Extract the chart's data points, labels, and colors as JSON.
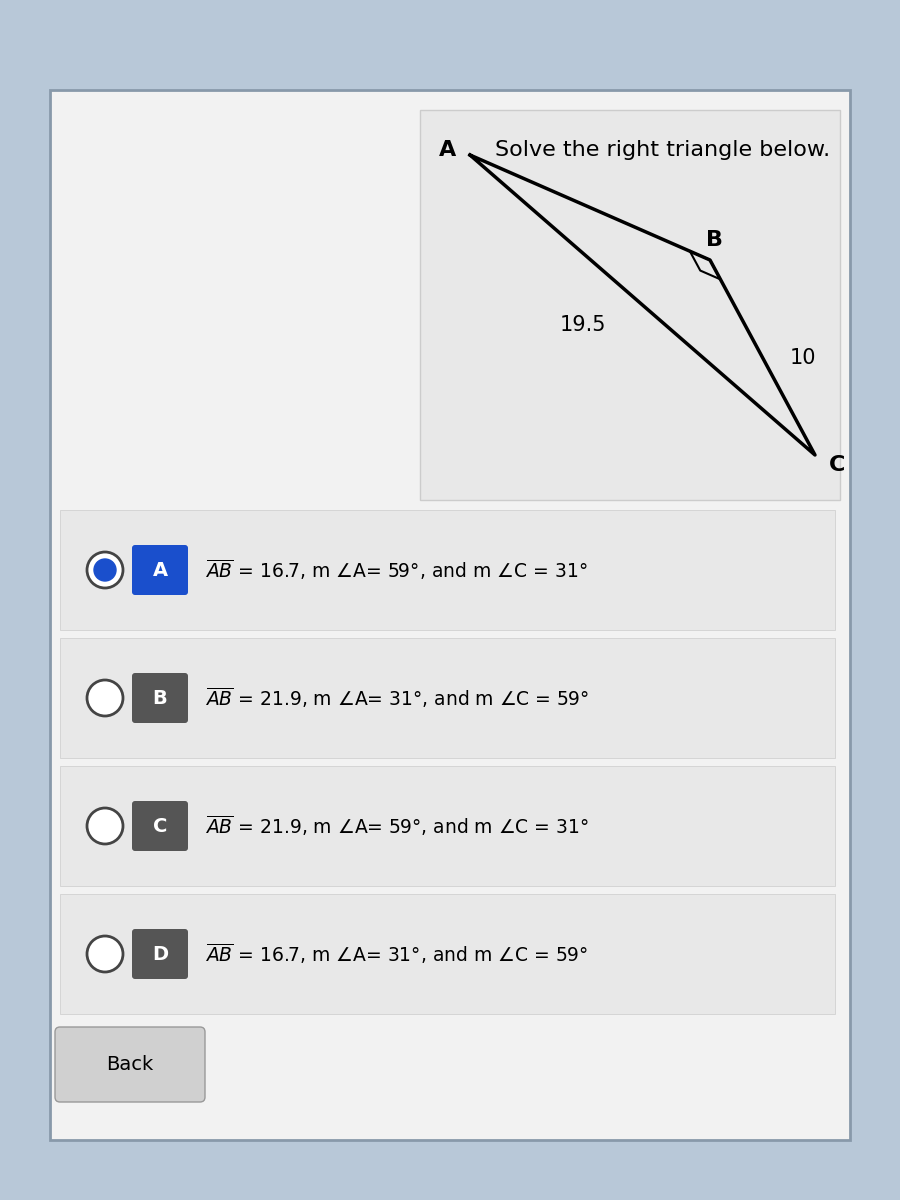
{
  "title": "Solve the right triangle below.",
  "bg_outer": "#b8c8d8",
  "bg_card": "#f2f2f2",
  "bg_tri_panel": "#e8e8e8",
  "bg_option": "#e8e8e8",
  "bg_back": "#d8d8d8",
  "triangle": {
    "label_A": "A",
    "label_B": "B",
    "label_C": "C",
    "side_BC": "10",
    "side_AC": "19.5"
  },
  "options": [
    {
      "letter": "A",
      "selected": true,
      "line1": "AB = 16.7, m ∠A= 59°, and m ∠C = 31°"
    },
    {
      "letter": "B",
      "selected": false,
      "line1": "AB = 21.9, m ∠A= 31°, and m ∠C = 59°"
    },
    {
      "letter": "C",
      "selected": false,
      "line1": "AB = 21.9, m ∠A= 59°, and m ∠C = 31°"
    },
    {
      "letter": "D",
      "selected": false,
      "line1": "AB = 16.7, m ∠A= 31°, and m ∠C = 59°"
    }
  ],
  "back_label": "Back"
}
